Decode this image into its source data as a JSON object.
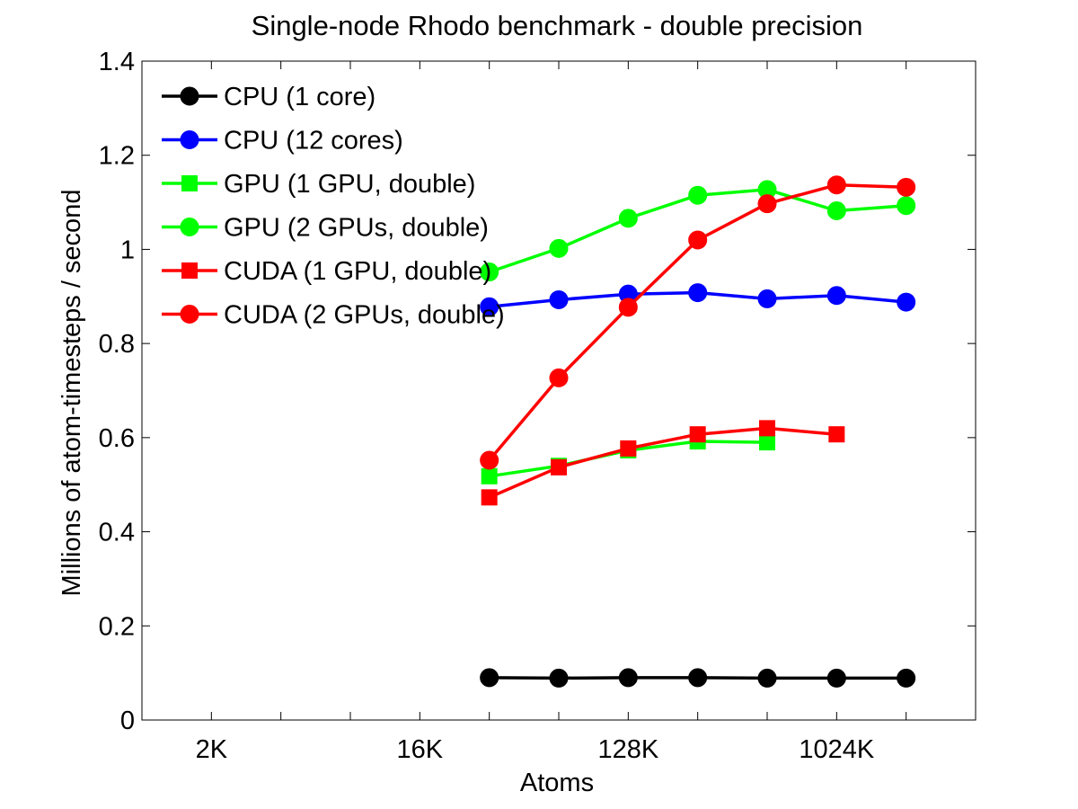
{
  "chart_data": {
    "type": "line",
    "title": "Single-node Rhodo benchmark - double precision",
    "xlabel": "Atoms",
    "ylabel": "Millions of atom-timesteps / second",
    "x_scale": "log2",
    "x_tick_labels": [
      {
        "value": 2000,
        "label": "2K"
      },
      {
        "value": 16000,
        "label": "16K"
      },
      {
        "value": 128000,
        "label": "128K"
      },
      {
        "value": 1024000,
        "label": "1024K"
      }
    ],
    "x_minor_ticks": [
      1000,
      4000,
      8000,
      32000,
      64000,
      256000,
      512000,
      2048000
    ],
    "xlim": [
      1000,
      4096000
    ],
    "ylim": [
      0,
      1.4
    ],
    "y_ticks": [
      0,
      0.2,
      0.4,
      0.6,
      0.8,
      1,
      1.2,
      1.4
    ],
    "y_tick_labels": [
      "0",
      "0.2",
      "0.4",
      "0.6",
      "0.8",
      "1",
      "1.2",
      "1.4"
    ],
    "legend_position": "top-left",
    "grid": false,
    "series": [
      {
        "name": "CPU (1 core)",
        "color": "#000000",
        "marker": "circle",
        "x": [
          32000,
          64000,
          128000,
          256000,
          512000,
          1024000,
          2048000
        ],
        "y": [
          0.09,
          0.089,
          0.09,
          0.09,
          0.089,
          0.089,
          0.089
        ]
      },
      {
        "name": "CPU (12 cores)",
        "color": "#0000ff",
        "marker": "circle",
        "x": [
          32000,
          64000,
          128000,
          256000,
          512000,
          1024000,
          2048000
        ],
        "y": [
          0.878,
          0.893,
          0.905,
          0.908,
          0.895,
          0.902,
          0.888
        ]
      },
      {
        "name": "GPU (1 GPU, double)",
        "color": "#00ff00",
        "marker": "square",
        "x": [
          32000,
          64000,
          128000,
          256000,
          512000
        ],
        "y": [
          0.518,
          0.54,
          0.573,
          0.592,
          0.59
        ]
      },
      {
        "name": "GPU (2 GPUs, double)",
        "color": "#00ff00",
        "marker": "circle",
        "x": [
          32000,
          64000,
          128000,
          256000,
          512000,
          1024000,
          2048000
        ],
        "y": [
          0.952,
          1.002,
          1.066,
          1.115,
          1.127,
          1.082,
          1.093
        ]
      },
      {
        "name": "CUDA (1 GPU, double)",
        "color": "#ff0000",
        "marker": "square",
        "x": [
          32000,
          64000,
          128000,
          256000,
          512000,
          1024000
        ],
        "y": [
          0.473,
          0.537,
          0.577,
          0.607,
          0.62,
          0.607
        ]
      },
      {
        "name": "CUDA (2 GPUs, double)",
        "color": "#ff0000",
        "marker": "circle",
        "x": [
          32000,
          64000,
          128000,
          256000,
          512000,
          1024000,
          2048000
        ],
        "y": [
          0.552,
          0.727,
          0.877,
          1.02,
          1.097,
          1.137,
          1.132
        ]
      }
    ]
  }
}
